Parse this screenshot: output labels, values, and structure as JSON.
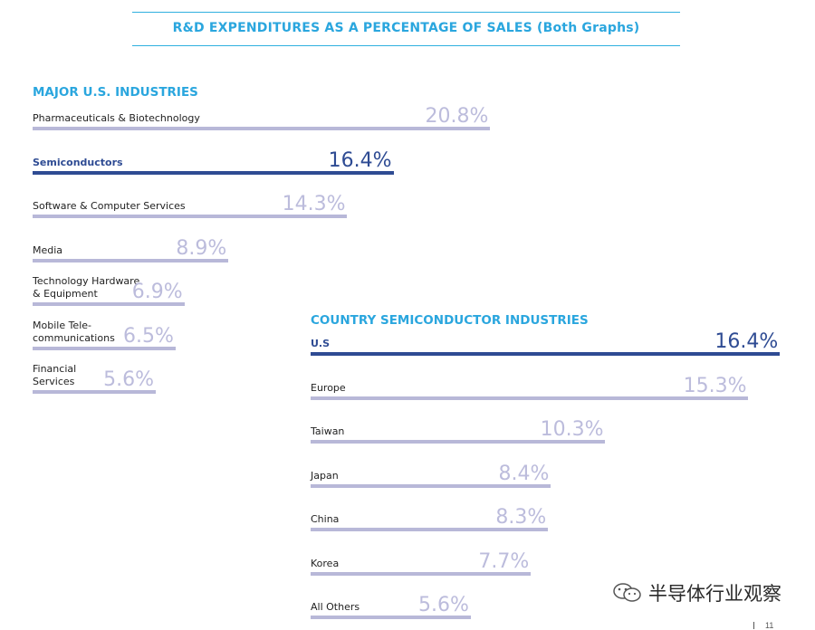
{
  "title": "R&D EXPENDITURES AS A PERCENTAGE OF SALES (Both Graphs)",
  "watermark_text": "半导体行业观察",
  "page_number": "11",
  "colors": {
    "title_blue": "#2aa6de",
    "bar_default": "#b8b8d8",
    "bar_highlight": "#2e4b93",
    "value_default": "#bcbcdc"
  },
  "chart_data": [
    {
      "type": "bar",
      "orientation": "horizontal",
      "title": "MAJOR U.S. INDUSTRIES",
      "categories": [
        "Pharmaceuticals & Biotechnology",
        "Semiconductors",
        "Software & Computer Services",
        "Media",
        "Technology Hardware\n& Equipment",
        "Mobile Tele-\ncommunications",
        "Financial\nServices"
      ],
      "values": [
        20.8,
        16.4,
        14.3,
        8.9,
        6.9,
        6.5,
        5.6
      ],
      "value_labels": [
        "20.8%",
        "16.4%",
        "14.3%",
        "8.9%",
        "6.9%",
        "6.5%",
        "5.6%"
      ],
      "highlight_index": 1
    },
    {
      "type": "bar",
      "orientation": "horizontal",
      "title": "COUNTRY SEMICONDUCTOR INDUSTRIES",
      "categories": [
        "U.S",
        "Europe",
        "Taiwan",
        "Japan",
        "China",
        "Korea",
        "All Others"
      ],
      "values": [
        16.4,
        15.3,
        10.3,
        8.4,
        8.3,
        7.7,
        5.6
      ],
      "value_labels": [
        "16.4%",
        "15.3%",
        "10.3%",
        "8.4%",
        "8.3%",
        "7.7%",
        "5.6%"
      ],
      "highlight_index": 0
    }
  ]
}
